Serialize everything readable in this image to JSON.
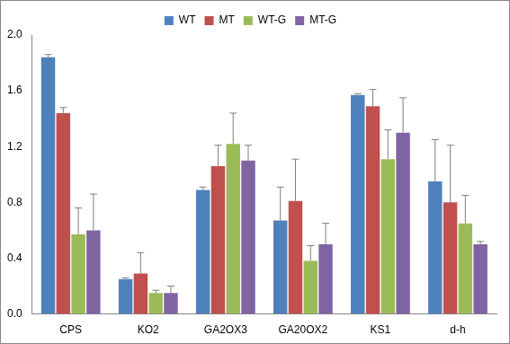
{
  "chart_data": {
    "type": "bar",
    "categories": [
      "CPS",
      "KO2",
      "GA2OX3",
      "GA20OX2",
      "KS1",
      "d-h"
    ],
    "series": [
      {
        "name": "WT",
        "color": "#4f81bd",
        "values": [
          1.84,
          0.25,
          0.89,
          0.67,
          1.57,
          0.95
        ],
        "errors": [
          0.02,
          0.01,
          0.02,
          0.24,
          0.01,
          0.3
        ]
      },
      {
        "name": "MT",
        "color": "#c0504d",
        "values": [
          1.44,
          0.29,
          1.06,
          0.81,
          1.49,
          0.8
        ],
        "errors": [
          0.04,
          0.15,
          0.15,
          0.3,
          0.12,
          0.41
        ]
      },
      {
        "name": "WT-G",
        "color": "#9bbb59",
        "values": [
          0.57,
          0.15,
          1.22,
          0.38,
          1.11,
          0.65
        ],
        "errors": [
          0.19,
          0.02,
          0.22,
          0.11,
          0.21,
          0.2
        ]
      },
      {
        "name": "MT-G",
        "color": "#8064a2",
        "values": [
          0.6,
          0.15,
          1.1,
          0.5,
          1.3,
          0.5
        ],
        "errors": [
          0.26,
          0.05,
          0.11,
          0.15,
          0.25,
          0.02
        ]
      }
    ],
    "ylim": [
      0,
      2.0
    ],
    "yticks": [
      {
        "value": 0,
        "label": "0.0"
      },
      0.4,
      0.8,
      1.2,
      1.6,
      {
        "value": 2.0,
        "label": "2.0"
      }
    ],
    "grid": false,
    "legend": "top"
  }
}
